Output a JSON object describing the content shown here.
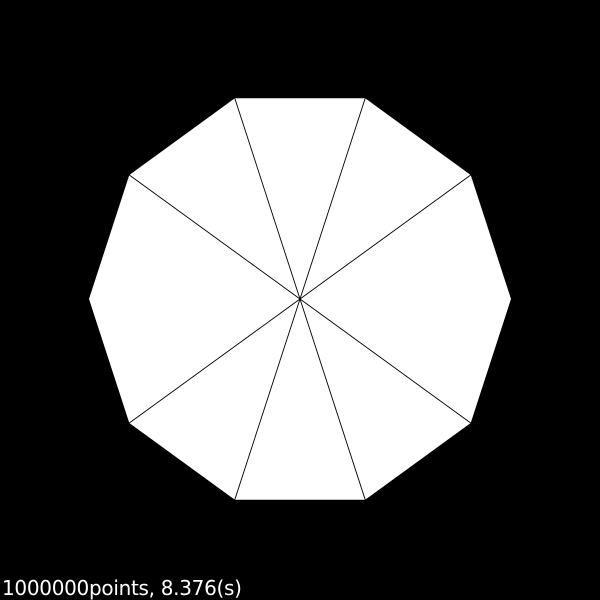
{
  "scene": {
    "background_color": "#000000",
    "fill_color": "#ffffff",
    "spoke_color": "#000000",
    "shape": "decagon",
    "segment_count": 10
  },
  "status": {
    "points": "1000000",
    "points_label": "points, ",
    "time": "8.376",
    "time_unit": "(s)"
  }
}
